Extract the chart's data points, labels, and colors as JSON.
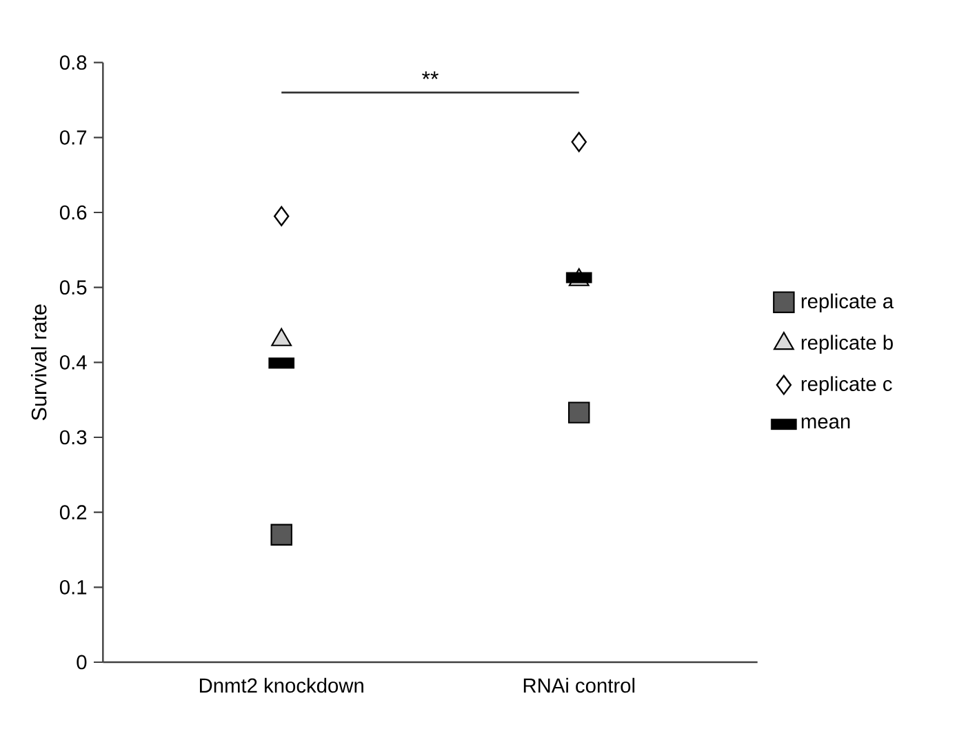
{
  "chart_data": {
    "type": "scatter",
    "ylabel": "Survival rate",
    "categories": [
      "Dnmt2 knockdown",
      "RNAi control"
    ],
    "ylim": [
      0,
      0.8
    ],
    "yticks": [
      0,
      0.1,
      0.2,
      0.3,
      0.4,
      0.5,
      0.6,
      0.7,
      0.8
    ],
    "legend": "right",
    "annotations": [
      "**"
    ],
    "series": [
      {
        "name": "replicate a",
        "color": "#595959",
        "marker": "square",
        "values": [
          0.17,
          0.333
        ]
      },
      {
        "name": "replicate b",
        "color": "#d9d9d9",
        "marker": "triangle",
        "values": [
          0.43,
          0.51
        ]
      },
      {
        "name": "replicate c",
        "color": "#ffffff",
        "marker": "diamond",
        "values": [
          0.595,
          0.694
        ]
      },
      {
        "name": "mean",
        "color": "#000000",
        "values": [
          0.399,
          0.513
        ]
      }
    ]
  }
}
